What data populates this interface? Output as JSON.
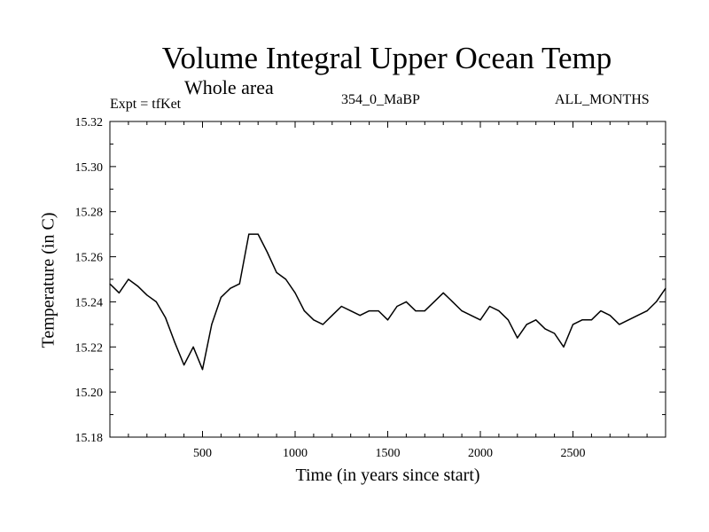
{
  "chart_data": {
    "type": "line",
    "title": "Volume Integral Upper Ocean Temp",
    "subtitle": "Whole area",
    "experiment": "Expt = tfKet",
    "run_label": "354_0_MaBP",
    "period_label": "ALL_MONTHS",
    "xlabel": "Time (in years since start)",
    "ylabel": "Temperature (in C)",
    "xlim": [
      0,
      3000
    ],
    "ylim": [
      15.18,
      15.32
    ],
    "x_ticks": [
      500,
      1000,
      1500,
      2000,
      2500
    ],
    "x_tick_labels": [
      "500",
      "1000",
      "1500",
      "2000",
      "2500"
    ],
    "y_ticks": [
      15.18,
      15.2,
      15.22,
      15.24,
      15.26,
      15.28,
      15.3,
      15.32
    ],
    "y_tick_labels": [
      "15.18",
      "15.20",
      "15.22",
      "15.24",
      "15.26",
      "15.28",
      "15.30",
      "15.32"
    ],
    "grid": false,
    "legend": "none",
    "line_color": "#000000",
    "series": [
      {
        "x": [
          0,
          50,
          100,
          150,
          200,
          250,
          300,
          350,
          400,
          450,
          500,
          550,
          600,
          650,
          700,
          750,
          800,
          850,
          900,
          950,
          1000,
          1050,
          1100,
          1150,
          1200,
          1250,
          1300,
          1350,
          1400,
          1450,
          1500,
          1550,
          1600,
          1650,
          1700,
          1750,
          1800,
          1850,
          1900,
          1950,
          2000,
          2050,
          2100,
          2150,
          2200,
          2250,
          2300,
          2350,
          2400,
          2450,
          2500,
          2550,
          2600,
          2650,
          2700,
          2750,
          2800,
          2850,
          2900,
          2950,
          3000
        ],
        "values": [
          15.248,
          15.244,
          15.25,
          15.247,
          15.243,
          15.24,
          15.233,
          15.222,
          15.212,
          15.22,
          15.21,
          15.23,
          15.242,
          15.246,
          15.248,
          15.27,
          15.27,
          15.262,
          15.253,
          15.25,
          15.244,
          15.236,
          15.232,
          15.23,
          15.234,
          15.238,
          15.236,
          15.234,
          15.236,
          15.236,
          15.232,
          15.238,
          15.24,
          15.236,
          15.236,
          15.24,
          15.244,
          15.24,
          15.236,
          15.234,
          15.232,
          15.238,
          15.236,
          15.232,
          15.224,
          15.23,
          15.232,
          15.228,
          15.226,
          15.22,
          15.23,
          15.232,
          15.232,
          15.236,
          15.234,
          15.23,
          15.232,
          15.234,
          15.236,
          15.24,
          15.246
        ]
      }
    ]
  }
}
